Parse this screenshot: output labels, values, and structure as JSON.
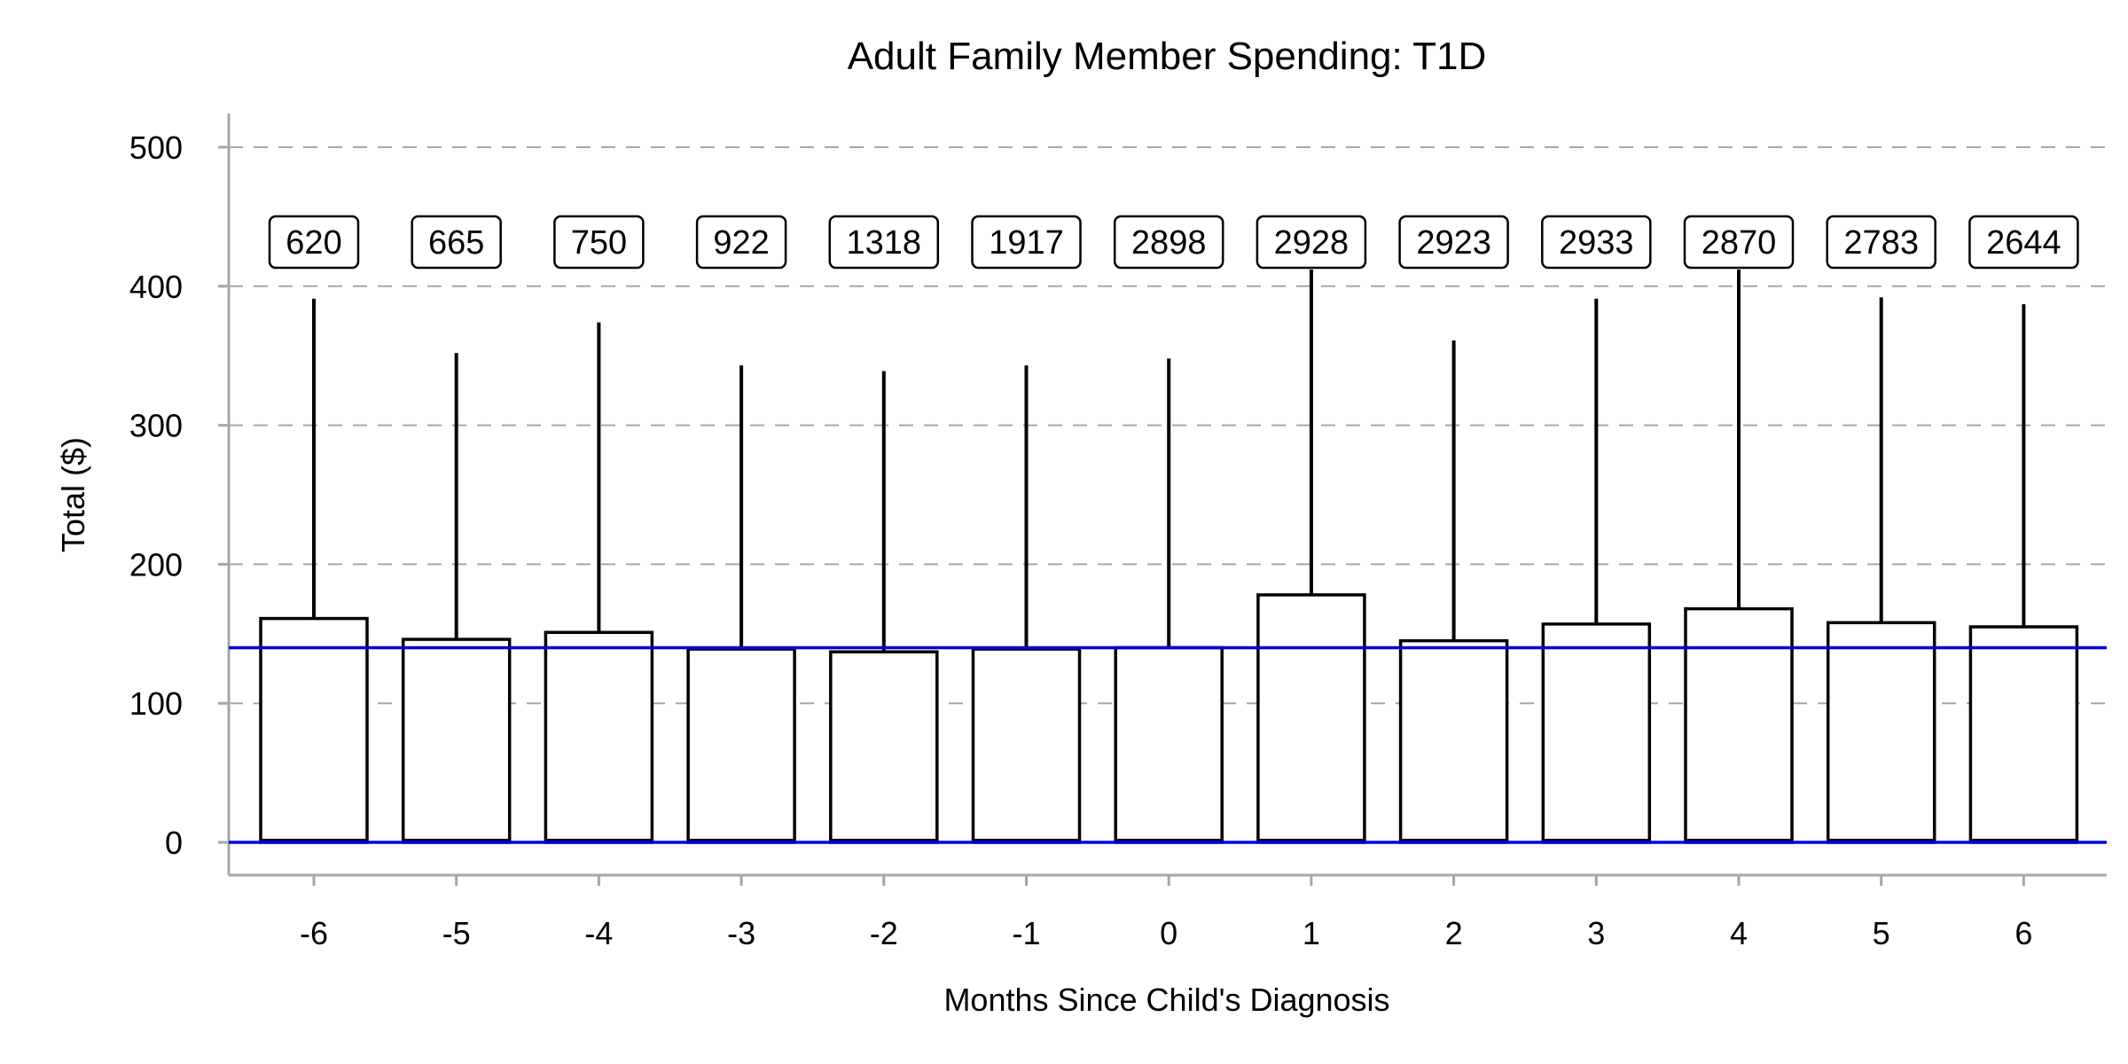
{
  "chart_data": {
    "type": "box",
    "title": "Adult Family Member Spending: T1D",
    "xlabel": "Months Since Child's Diagnosis",
    "ylabel": "Total ($)",
    "ylim": [
      -25,
      525
    ],
    "yticks": [
      0,
      100,
      200,
      300,
      400,
      500
    ],
    "grid": true,
    "categories": [
      "-6",
      "-5",
      "-4",
      "-3",
      "-2",
      "-1",
      "0",
      "1",
      "2",
      "3",
      "4",
      "5",
      "6"
    ],
    "counts": [
      "620",
      "665",
      "750",
      "922",
      "1318",
      "1917",
      "2898",
      "2928",
      "2923",
      "2933",
      "2870",
      "2783",
      "2644"
    ],
    "box_low": [
      0,
      0,
      0,
      0,
      0,
      0,
      0,
      0,
      0,
      0,
      0,
      0,
      0
    ],
    "median": [
      0,
      0,
      0,
      0,
      0,
      0,
      0,
      0,
      0,
      0,
      0,
      0,
      0
    ],
    "box_high": [
      161,
      146,
      151,
      139,
      137,
      139,
      140,
      178,
      145,
      157,
      168,
      158,
      155
    ],
    "whisker_high": [
      391,
      352,
      374,
      343,
      339,
      343,
      348,
      412,
      361,
      391,
      412,
      392,
      387
    ],
    "reference_lines": [
      0,
      140
    ],
    "reference_color": "#0000dd"
  }
}
